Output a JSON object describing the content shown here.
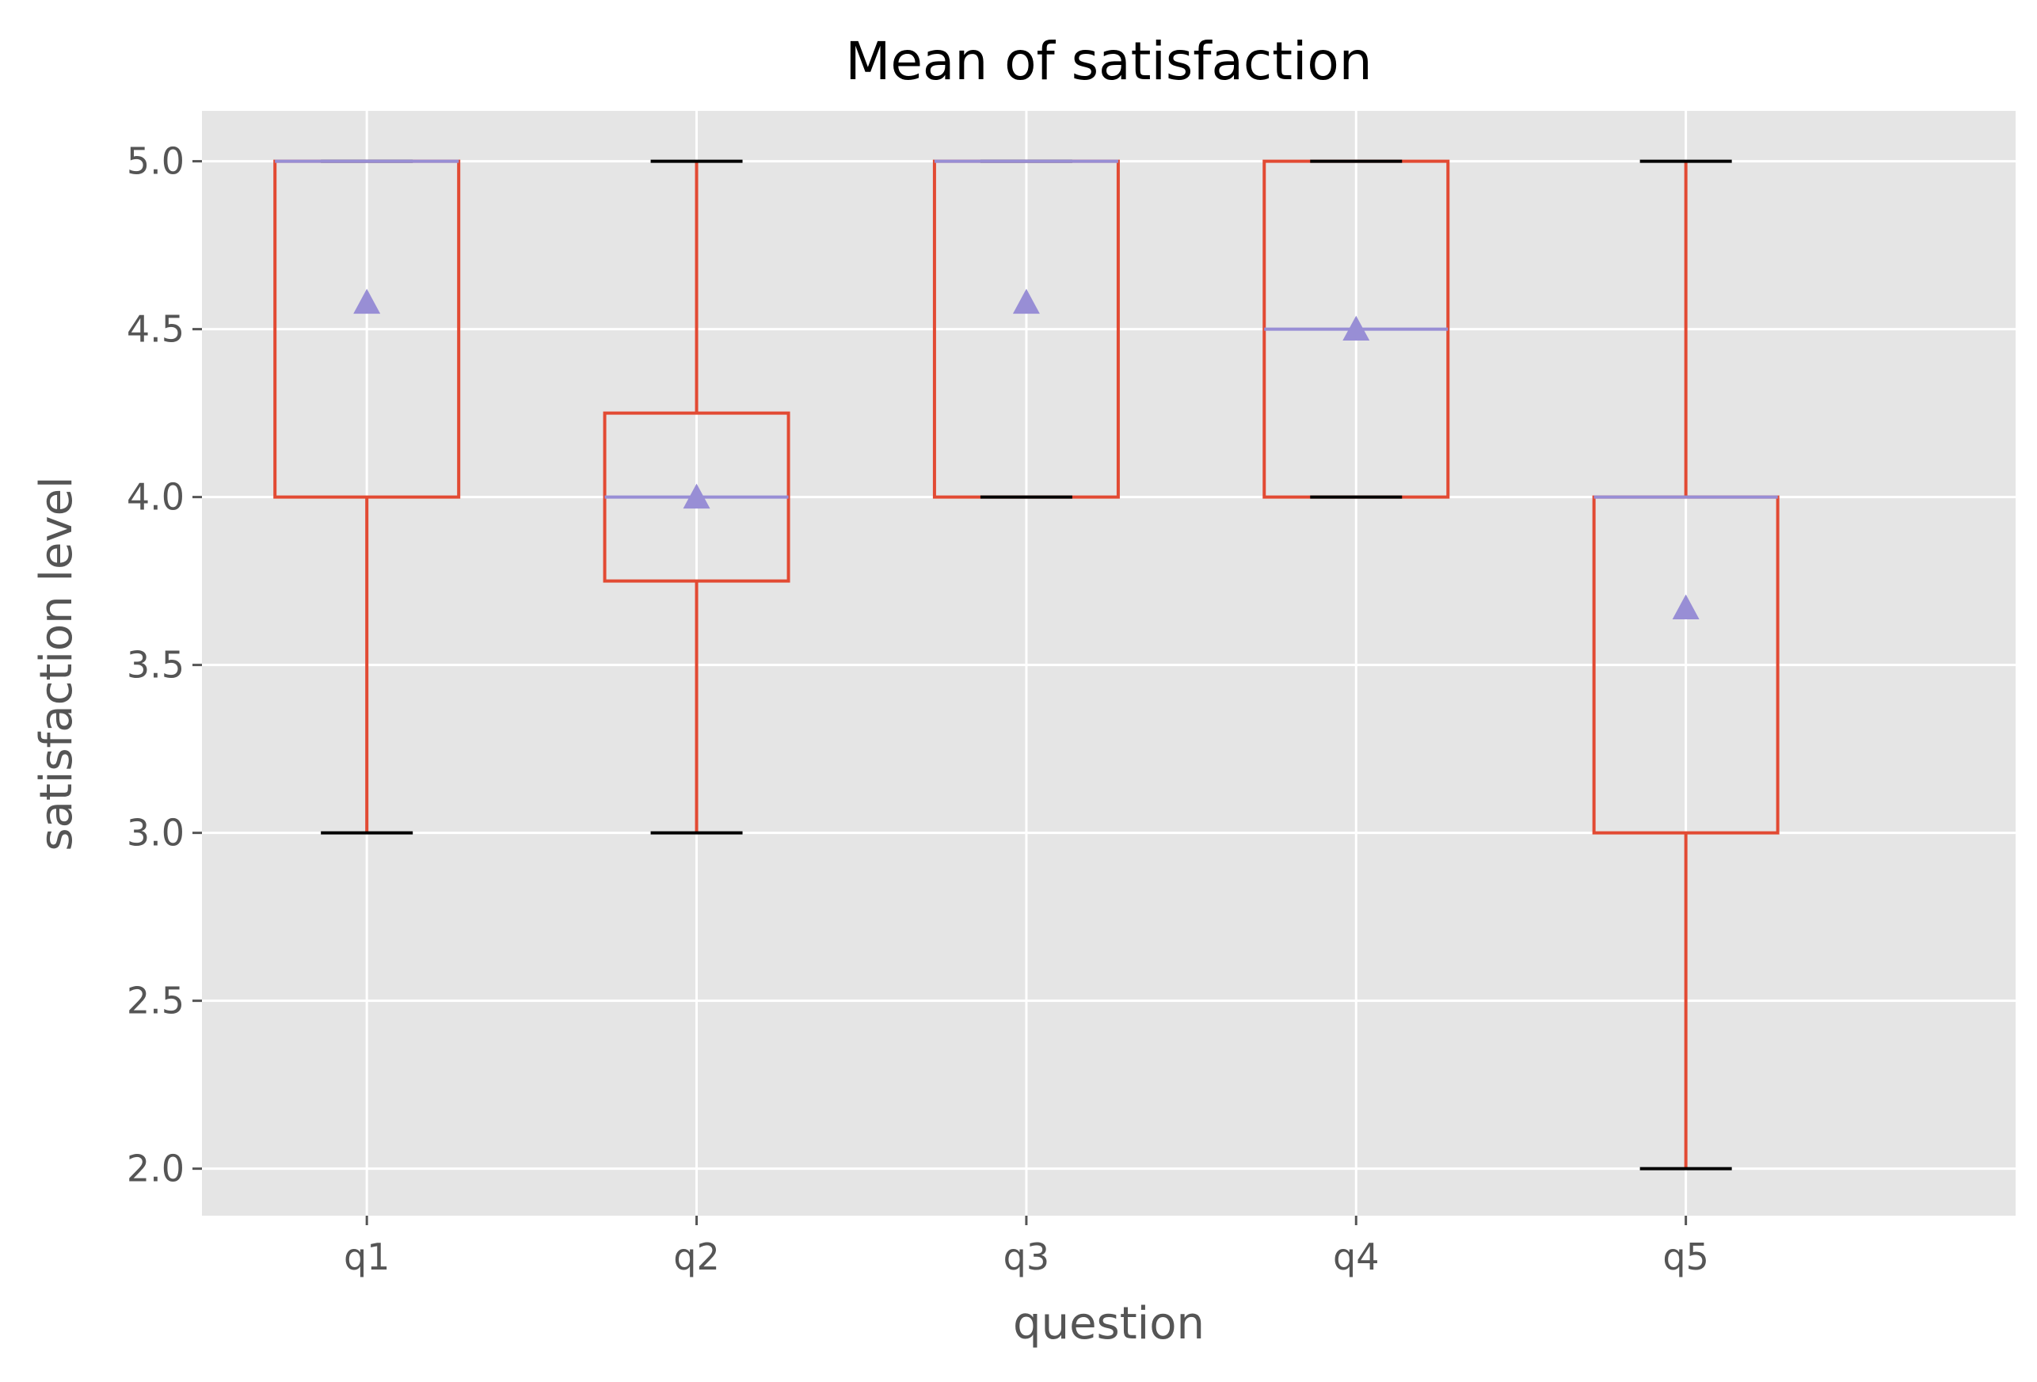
{
  "chart_data": {
    "type": "box",
    "title": "Mean of satisfaction",
    "xlabel": "question",
    "ylabel": "satisfaction level",
    "ylim": [
      1.86,
      5.15
    ],
    "yticks": [
      2.0,
      2.5,
      3.0,
      3.5,
      4.0,
      4.5,
      5.0
    ],
    "ytick_labels": [
      "2.0",
      "2.5",
      "3.0",
      "3.5",
      "4.0",
      "4.5",
      "5.0"
    ],
    "grid": true,
    "categories": [
      "q1",
      "q2",
      "q3",
      "q4",
      "q5"
    ],
    "boxes": [
      {
        "label": "q1",
        "whisker_low": 3.0,
        "q1": 4.0,
        "median": 5.0,
        "q3": 5.0,
        "whisker_high": 5.0,
        "mean": 4.58
      },
      {
        "label": "q2",
        "whisker_low": 3.0,
        "q1": 3.75,
        "median": 4.0,
        "q3": 4.25,
        "whisker_high": 5.0,
        "mean": 4.0
      },
      {
        "label": "q3",
        "whisker_low": 4.0,
        "q1": 4.0,
        "median": 5.0,
        "q3": 5.0,
        "whisker_high": 5.0,
        "mean": 4.58
      },
      {
        "label": "q4",
        "whisker_low": 4.0,
        "q1": 4.0,
        "median": 4.5,
        "q3": 5.0,
        "whisker_high": 5.0,
        "mean": 4.5
      },
      {
        "label": "q5",
        "whisker_low": 2.0,
        "q1": 3.0,
        "median": 4.0,
        "q3": 4.0,
        "whisker_high": 5.0,
        "mean": 3.67
      }
    ],
    "colors": {
      "plot_background": "#e5e5e5",
      "grid": "#ffffff",
      "box": "#e24a33",
      "median": "#988ed5",
      "mean_marker": "#988ed5",
      "cap": "#000000"
    }
  }
}
